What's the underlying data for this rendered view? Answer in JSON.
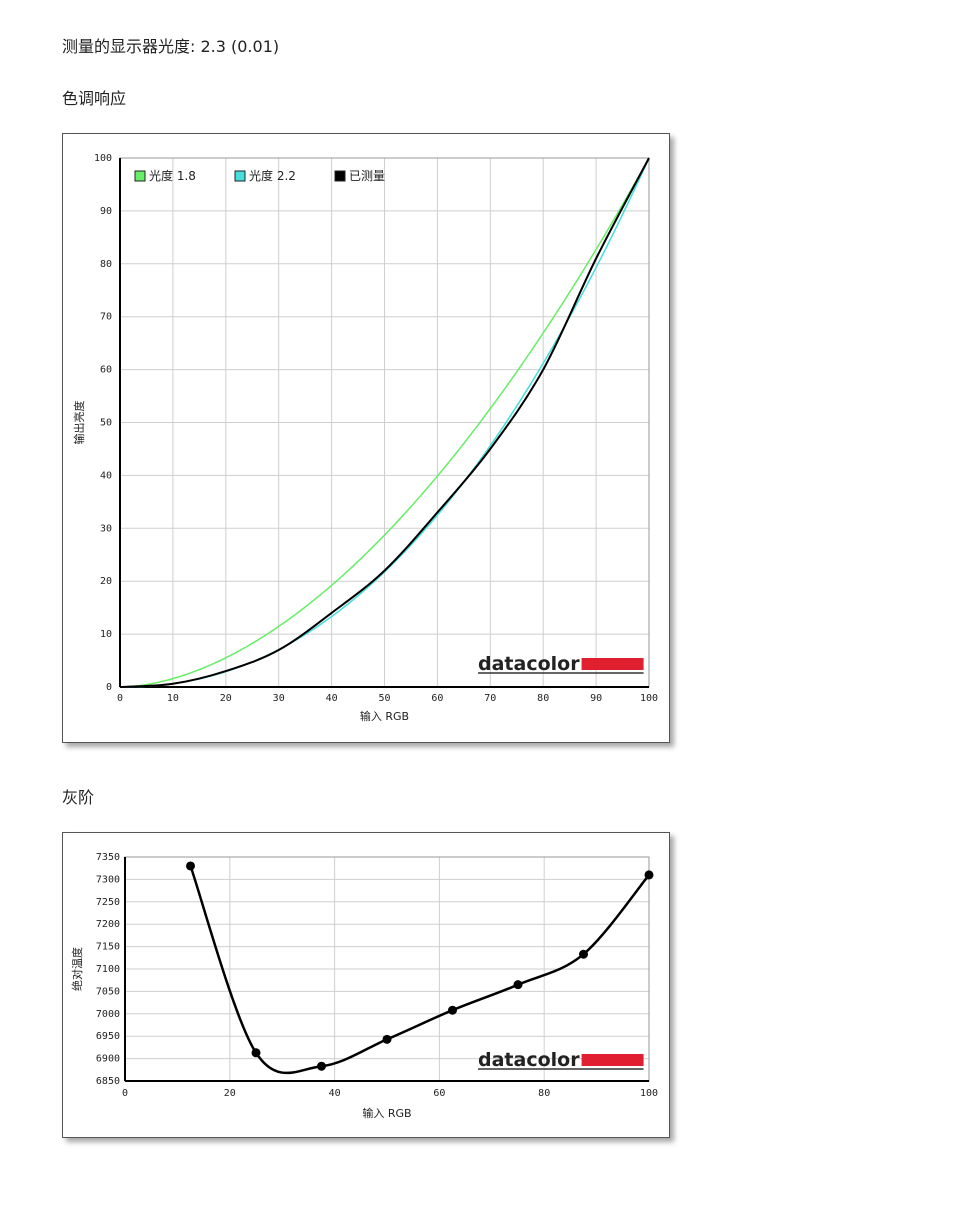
{
  "gamma_line": "测量的显示器光度: 2.3 (0.01)",
  "section1_title": "色调响应",
  "section2_title": "灰阶",
  "logo_text": "datacolor",
  "colors": {
    "gamma18": "#66ee66",
    "gamma22": "#44dddd",
    "measured": "#000000",
    "logo_bar": "#e02030"
  },
  "chart_data": [
    {
      "type": "line",
      "title": "色调响应",
      "xlabel": "输入 RGB",
      "ylabel": "输出亮度",
      "xlim": [
        0,
        100
      ],
      "ylim": [
        0,
        100
      ],
      "x_ticks": [
        "0",
        "10",
        "20",
        "30",
        "40",
        "50",
        "60",
        "70",
        "80",
        "90",
        "100"
      ],
      "y_ticks": [
        "0",
        "10",
        "20",
        "30",
        "40",
        "50",
        "60",
        "70",
        "80",
        "90",
        "100"
      ],
      "grid": true,
      "legend_position": "top-left",
      "series": [
        {
          "name": "光度 1.8",
          "color": "#66ee66",
          "gamma": 1.8
        },
        {
          "name": "光度 2.2",
          "color": "#44dddd",
          "gamma": 2.2
        },
        {
          "name": "已测量",
          "color": "#000000",
          "x": [
            0,
            10,
            20,
            30,
            40,
            50,
            60,
            70,
            80,
            90,
            100
          ],
          "y": [
            0,
            0.6,
            3,
            7,
            14,
            22,
            33,
            45,
            60,
            81,
            100
          ]
        }
      ]
    },
    {
      "type": "line",
      "title": "灰阶",
      "xlabel": "输入 RGB",
      "ylabel": "绝对温度",
      "xlim": [
        0,
        100
      ],
      "ylim": [
        6850,
        7350
      ],
      "x_ticks": [
        "0",
        "20",
        "40",
        "60",
        "80",
        "100"
      ],
      "y_ticks": [
        "6850",
        "6900",
        "6950",
        "7000",
        "7050",
        "7100",
        "7150",
        "7200",
        "7250",
        "7300",
        "7350"
      ],
      "grid": true,
      "series": [
        {
          "name": "",
          "x": [
            12.5,
            25,
            37.5,
            50,
            62.5,
            75,
            87.5,
            100
          ],
          "y": [
            7330,
            6913,
            6883,
            6943,
            7008,
            7065,
            7133,
            7310
          ]
        }
      ]
    }
  ]
}
